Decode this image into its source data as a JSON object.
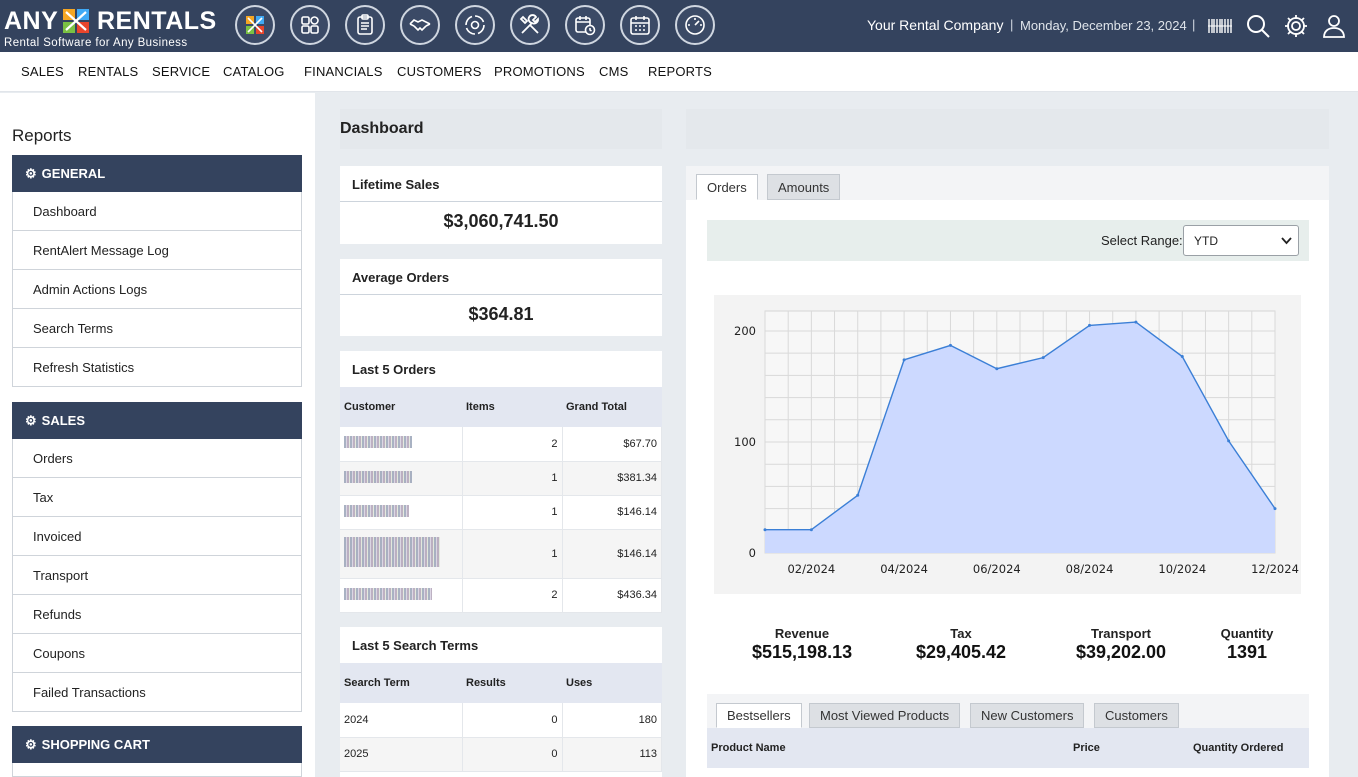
{
  "brand": {
    "word1": "ANY",
    "word2": "RENTALS",
    "tagline": "Rental Software for Any Business"
  },
  "toolbar_icons": [
    "categories-icon",
    "grid-icon",
    "clipboard-icon",
    "handshake-icon",
    "settings-cycle-icon",
    "tools-icon",
    "calendar-clock-icon",
    "calendar-icon",
    "gauge-icon"
  ],
  "header": {
    "company": "Your Rental Company",
    "separator": "|",
    "date": "Monday, December 23, 2024"
  },
  "nav": [
    "SALES",
    "RENTALS",
    "SERVICE",
    "CATALOG",
    "FINANCIALS",
    "CUSTOMERS",
    "PROMOTIONS",
    "CMS",
    "REPORTS"
  ],
  "sidebar": {
    "title": "Reports",
    "general": {
      "label": "GENERAL",
      "items": [
        "Dashboard",
        "RentAlert Message Log",
        "Admin Actions Logs",
        "Search Terms",
        "Refresh Statistics"
      ]
    },
    "sales": {
      "label": "SALES",
      "items": [
        "Orders",
        "Tax",
        "Invoiced",
        "Transport",
        "Refunds",
        "Coupons",
        "Failed Transactions"
      ]
    },
    "cart": {
      "label": "SHOPPING CART"
    }
  },
  "dashboard": {
    "title": "Dashboard",
    "lifetime": {
      "label": "Lifetime Sales",
      "value": "$3,060,741.50"
    },
    "average": {
      "label": "Average Orders",
      "value": "$364.81"
    },
    "last_orders": {
      "label": "Last 5 Orders",
      "headers": [
        "Customer",
        "Items",
        "Grand Total"
      ],
      "rows": [
        {
          "items": "2",
          "total": "$67.70"
        },
        {
          "items": "1",
          "total": "$381.34"
        },
        {
          "items": "1",
          "total": "$146.14"
        },
        {
          "items": "1",
          "total": "$146.14"
        },
        {
          "items": "2",
          "total": "$436.34"
        }
      ]
    },
    "last_terms": {
      "label": "Last 5 Search Terms",
      "headers": [
        "Search Term",
        "Results",
        "Uses"
      ],
      "rows": [
        {
          "term": "2024",
          "results": "0",
          "uses": "180"
        },
        {
          "term": "2025",
          "results": "0",
          "uses": "113"
        }
      ]
    }
  },
  "panel": {
    "tabs": [
      "Orders",
      "Amounts"
    ],
    "range_label": "Select Range:",
    "range_value": "YTD",
    "stats": [
      {
        "label": "Revenue",
        "value": "$515,198.13"
      },
      {
        "label": "Tax",
        "value": "$29,405.42"
      },
      {
        "label": "Transport",
        "value": "$39,202.00"
      },
      {
        "label": "Quantity",
        "value": "1391"
      }
    ],
    "bottom_tabs": [
      "Bestsellers",
      "Most Viewed Products",
      "New Customers",
      "Customers"
    ],
    "bottom_headers": [
      "Product Name",
      "Price",
      "Quantity Ordered"
    ]
  },
  "colors": {
    "topbar": "#34435e",
    "area_fill": "#ccd9ff",
    "area_line": "#3b7fd6"
  },
  "chart_data": {
    "type": "area",
    "x": [
      "01/2024",
      "02/2024",
      "03/2024",
      "04/2024",
      "05/2024",
      "06/2024",
      "07/2024",
      "08/2024",
      "09/2024",
      "10/2024",
      "11/2024",
      "12/2024"
    ],
    "values": [
      21,
      21,
      52,
      174,
      187,
      166,
      176,
      205,
      208,
      177,
      101,
      40
    ],
    "x_tick_labels": [
      "02/2024",
      "04/2024",
      "06/2024",
      "08/2024",
      "10/2024",
      "12/2024"
    ],
    "y_tick_labels": [
      "0",
      "100",
      "200"
    ],
    "ylim": [
      0,
      218
    ],
    "grid": true,
    "legend": "none"
  }
}
